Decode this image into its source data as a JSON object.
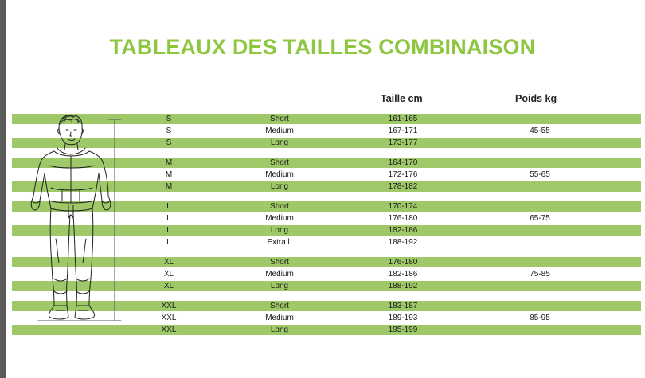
{
  "title": "TABLEAUX DES TAILLES COMBINAISON",
  "columns": {
    "height": "Taille cm",
    "weight": "Poids kg"
  },
  "colors": {
    "title": "#8dc63f",
    "stripe": "#9fc968"
  },
  "rows": [
    {
      "size": "S",
      "fit": "Short",
      "height_cm": "161-165",
      "weight_kg": ""
    },
    {
      "size": "S",
      "fit": "Medium",
      "height_cm": "167-171",
      "weight_kg": "45-55"
    },
    {
      "size": "S",
      "fit": "Long",
      "height_cm": "173-177",
      "weight_kg": ""
    },
    {
      "size": "M",
      "fit": "Short",
      "height_cm": "164-170",
      "weight_kg": ""
    },
    {
      "size": "M",
      "fit": "Medium",
      "height_cm": "172-176",
      "weight_kg": "55-65"
    },
    {
      "size": "M",
      "fit": "Long",
      "height_cm": "178-182",
      "weight_kg": ""
    },
    {
      "size": "L",
      "fit": "Short",
      "height_cm": "170-174",
      "weight_kg": ""
    },
    {
      "size": "L",
      "fit": "Medium",
      "height_cm": "176-180",
      "weight_kg": "65-75"
    },
    {
      "size": "L",
      "fit": "Long",
      "height_cm": "182-186",
      "weight_kg": ""
    },
    {
      "size": "L",
      "fit": "Extra l.",
      "height_cm": "188-192",
      "weight_kg": ""
    },
    {
      "size": "XL",
      "fit": "Short",
      "height_cm": "176-180",
      "weight_kg": ""
    },
    {
      "size": "XL",
      "fit": "Medium",
      "height_cm": "182-186",
      "weight_kg": "75-85"
    },
    {
      "size": "XL",
      "fit": "Long",
      "height_cm": "188-192",
      "weight_kg": ""
    },
    {
      "size": "XXL",
      "fit": "Short",
      "height_cm": "183-187",
      "weight_kg": ""
    },
    {
      "size": "XXL",
      "fit": "Medium",
      "height_cm": "189-193",
      "weight_kg": "85-95"
    },
    {
      "size": "XXL",
      "fit": "Long",
      "height_cm": "195-199",
      "weight_kg": ""
    }
  ]
}
